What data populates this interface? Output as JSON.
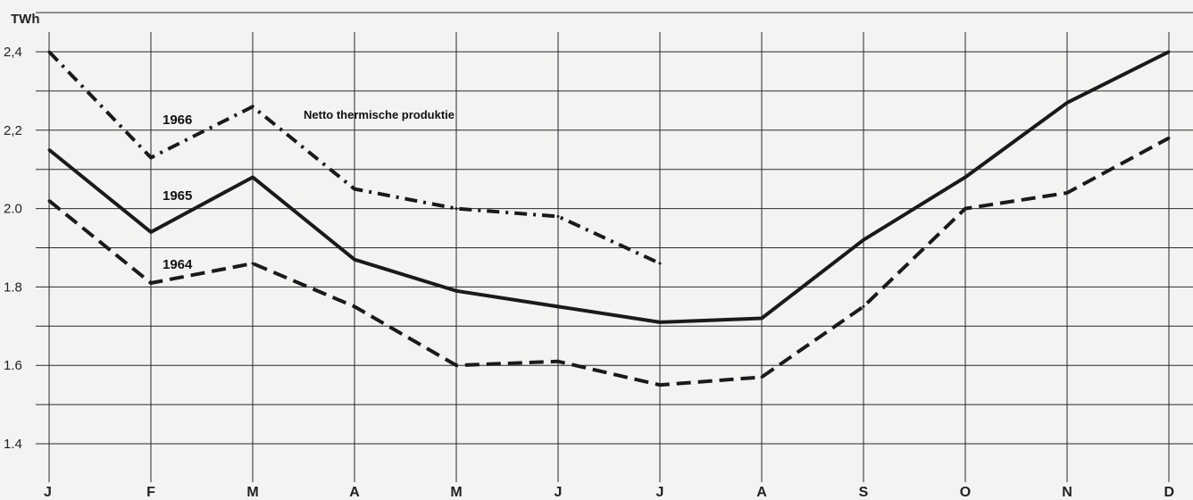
{
  "chart_data": {
    "type": "line",
    "title": "",
    "xlabel": "",
    "ylabel": "TWh",
    "annotation": "Netto thermische produktie",
    "categories": [
      "J",
      "F",
      "M",
      "A",
      "M",
      "J",
      "J",
      "A",
      "S",
      "O",
      "N",
      "D"
    ],
    "yticks": [
      "1.4",
      "1.6",
      "1.8",
      "2.0",
      "2,2",
      "2,4"
    ],
    "ylim": [
      1.4,
      2.4
    ],
    "grid": true,
    "series": [
      {
        "name": "1966",
        "style": "dashdot",
        "values": [
          2.4,
          2.13,
          2.26,
          2.05,
          2.0,
          1.98,
          1.86,
          null,
          null,
          null,
          null,
          null
        ]
      },
      {
        "name": "1965",
        "style": "solid",
        "values": [
          2.15,
          1.94,
          2.08,
          1.87,
          1.79,
          1.75,
          1.71,
          1.72,
          1.92,
          2.08,
          2.27,
          2.4
        ]
      },
      {
        "name": "1964",
        "style": "dashed",
        "values": [
          2.02,
          1.81,
          1.86,
          1.75,
          1.6,
          1.61,
          1.55,
          1.57,
          1.75,
          2.0,
          2.04,
          2.18
        ]
      }
    ]
  }
}
